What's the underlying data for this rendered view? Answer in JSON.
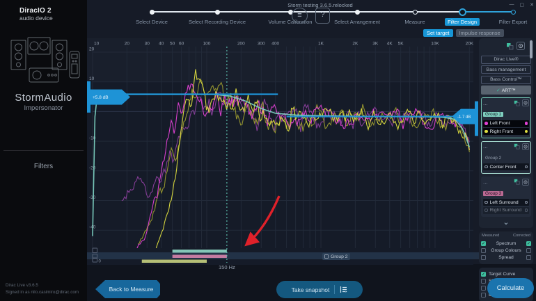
{
  "window": {
    "title": "Storm testing 3.6.5.relocked",
    "minimize": "—",
    "maximize": "▢",
    "close": "✕"
  },
  "toolbar": {
    "menu_icon": "≡",
    "help_icon": "?"
  },
  "sidebar": {
    "logo_line1": "DiracIO 2",
    "logo_line2": "audio device",
    "device_name": "StormAudio",
    "device_model": "Impersonator",
    "nav_filters": "Filters",
    "version": "Dirac Live v3.6.5",
    "signed_in": "Signed in as nilo.casimiro@dirac.com"
  },
  "stepper": {
    "steps": [
      {
        "label": "Select Device",
        "state": "done"
      },
      {
        "label": "Select Recording Device",
        "state": "done"
      },
      {
        "label": "Volume Calibration",
        "state": "done"
      },
      {
        "label": "Select Arrangement",
        "state": "done"
      },
      {
        "label": "Measure",
        "state": "open"
      },
      {
        "label": "Filter Design",
        "state": "active"
      },
      {
        "label": "Filter Export",
        "state": "next"
      }
    ],
    "sub_tabs": [
      {
        "label": "Set target",
        "active": true
      },
      {
        "label": "Impulse response",
        "active": false
      }
    ]
  },
  "chart_data": {
    "type": "line",
    "x_unit": "Hz",
    "y_unit": "dB",
    "x_scale": "log",
    "x_range": [
      10,
      20000
    ],
    "y_range": [
      -45,
      20
    ],
    "x_ticks": [
      {
        "f": 10,
        "label": "10"
      },
      {
        "f": 20,
        "label": "20"
      },
      {
        "f": 30,
        "label": "30"
      },
      {
        "f": 40,
        "label": "40"
      },
      {
        "f": 50,
        "label": "50"
      },
      {
        "f": 60,
        "label": "60"
      },
      {
        "f": 70,
        "label": ""
      },
      {
        "f": 80,
        "label": ""
      },
      {
        "f": 90,
        "label": ""
      },
      {
        "f": 100,
        "label": "100"
      },
      {
        "f": 200,
        "label": "200"
      },
      {
        "f": 300,
        "label": "300"
      },
      {
        "f": 400,
        "label": "400"
      },
      {
        "f": 500,
        "label": ""
      },
      {
        "f": 600,
        "label": ""
      },
      {
        "f": 700,
        "label": ""
      },
      {
        "f": 800,
        "label": ""
      },
      {
        "f": 900,
        "label": ""
      },
      {
        "f": 1000,
        "label": "1K"
      },
      {
        "f": 2000,
        "label": "2K"
      },
      {
        "f": 3000,
        "label": "3K"
      },
      {
        "f": 4000,
        "label": "4K"
      },
      {
        "f": 5000,
        "label": "5K"
      },
      {
        "f": 6000,
        "label": ""
      },
      {
        "f": 7000,
        "label": ""
      },
      {
        "f": 8000,
        "label": ""
      },
      {
        "f": 9000,
        "label": ""
      },
      {
        "f": 10000,
        "label": "10K"
      },
      {
        "f": 20000,
        "label": "20K"
      }
    ],
    "y_ticks": [
      {
        "db": 20,
        "label": "20"
      },
      {
        "db": 10,
        "label": "10"
      },
      {
        "db": 0,
        "label": ""
      },
      {
        "db": -10,
        "label": "-10"
      },
      {
        "db": -20,
        "label": "-20"
      },
      {
        "db": -30,
        "label": "-30"
      },
      {
        "db": -40,
        "label": "-40"
      }
    ],
    "crossover": {
      "f": 150,
      "label": "150 Hz"
    },
    "handles": [
      {
        "side": "left",
        "db": 5.8,
        "label": "+5.8 dB",
        "f_start": 10,
        "f_end": 420
      },
      {
        "side": "right",
        "db": -1.7,
        "label": "-1.7 dB",
        "f_start": 500,
        "f_end": 20000
      }
    ],
    "series": [
      {
        "name": "Left Front measured",
        "color": "#8a3f9c",
        "noisy": true,
        "seed": 11,
        "noise_db": 5,
        "points": [
          [
            18,
            -30
          ],
          [
            25,
            -24
          ],
          [
            32,
            -27
          ],
          [
            40,
            -22
          ],
          [
            50,
            -16
          ],
          [
            60,
            -8
          ],
          [
            70,
            0
          ],
          [
            85,
            6
          ],
          [
            100,
            2
          ],
          [
            130,
            4
          ],
          [
            170,
            1
          ],
          [
            220,
            2
          ],
          [
            300,
            -1
          ],
          [
            450,
            -1.5
          ],
          [
            700,
            -1.5
          ],
          [
            1200,
            -1.5
          ],
          [
            2500,
            -1.5
          ],
          [
            5000,
            -2
          ],
          [
            9000,
            -2
          ],
          [
            13000,
            -2.5
          ],
          [
            16000,
            -4
          ],
          [
            20000,
            -10
          ]
        ]
      },
      {
        "name": "Right Front measured",
        "color": "#99992f",
        "noisy": true,
        "seed": 22,
        "noise_db": 5,
        "points": [
          [
            25,
            -45
          ],
          [
            33,
            -35
          ],
          [
            42,
            -25
          ],
          [
            52,
            -12
          ],
          [
            62,
            -2
          ],
          [
            75,
            7
          ],
          [
            90,
            10
          ],
          [
            110,
            5
          ],
          [
            140,
            6
          ],
          [
            180,
            2
          ],
          [
            240,
            1
          ],
          [
            350,
            -1
          ],
          [
            550,
            -1
          ],
          [
            900,
            -1.5
          ],
          [
            1800,
            -1.5
          ],
          [
            3000,
            -2
          ],
          [
            6000,
            -2
          ],
          [
            10000,
            -2.5
          ],
          [
            14000,
            -3
          ],
          [
            17000,
            -5
          ],
          [
            20000,
            -12
          ]
        ]
      },
      {
        "name": "Left Front corrected",
        "color": "#e041d4",
        "noisy": true,
        "seed": 33,
        "noise_db": 4.5,
        "points": [
          [
            22,
            -50
          ],
          [
            30,
            -40
          ],
          [
            38,
            -25
          ],
          [
            48,
            -8
          ],
          [
            60,
            2
          ],
          [
            75,
            6
          ],
          [
            90,
            3
          ],
          [
            110,
            4
          ],
          [
            140,
            2
          ],
          [
            180,
            3
          ],
          [
            250,
            -1
          ],
          [
            350,
            -2
          ],
          [
            500,
            -2
          ],
          [
            800,
            -2
          ],
          [
            1200,
            -2
          ],
          [
            2000,
            -2
          ],
          [
            3500,
            -2.5
          ],
          [
            6000,
            -2.5
          ],
          [
            10000,
            -3
          ],
          [
            14000,
            -3.5
          ],
          [
            17000,
            -6
          ],
          [
            20000,
            -13
          ]
        ]
      },
      {
        "name": "Right Front corrected",
        "color": "#dede3f",
        "noisy": true,
        "seed": 44,
        "noise_db": 4.5,
        "points": [
          [
            30,
            -52
          ],
          [
            40,
            -42
          ],
          [
            50,
            -28
          ],
          [
            58,
            -10
          ],
          [
            66,
            4
          ],
          [
            80,
            9
          ],
          [
            95,
            4
          ],
          [
            120,
            5
          ],
          [
            150,
            2
          ],
          [
            200,
            3
          ],
          [
            280,
            -1
          ],
          [
            400,
            -2
          ],
          [
            600,
            -1.5
          ],
          [
            1000,
            -2
          ],
          [
            2000,
            -2
          ],
          [
            4000,
            -2.5
          ],
          [
            7000,
            -2.5
          ],
          [
            11000,
            -3
          ],
          [
            15000,
            -3.5
          ],
          [
            18000,
            -7
          ],
          [
            20000,
            -14
          ]
        ]
      },
      {
        "name": "Target curve",
        "color": "#7bd0c0",
        "noisy": false,
        "seed": 0,
        "noise_db": 0,
        "points": [
          [
            10,
            -42
          ],
          [
            10.3,
            -15
          ],
          [
            10.6,
            5.8
          ],
          [
            80,
            5.8
          ],
          [
            120,
            5.7
          ],
          [
            160,
            5.2
          ],
          [
            220,
            3.5
          ],
          [
            300,
            1
          ],
          [
            400,
            -0.6
          ],
          [
            600,
            -1.2
          ],
          [
            1000,
            -1.4
          ],
          [
            2000,
            -1.6
          ],
          [
            4000,
            -1.7
          ],
          [
            8000,
            -1.8
          ],
          [
            12000,
            -2
          ],
          [
            15000,
            -2.6
          ],
          [
            17500,
            -6
          ],
          [
            20000,
            -12
          ]
        ]
      }
    ],
    "group_bars": [
      {
        "name": "Group 1",
        "color": "#8fd8c6",
        "f1": 50,
        "f2": 150,
        "row": 0
      },
      {
        "name": "Group 2",
        "color": "#d583ab",
        "f1": 50,
        "f2": 150,
        "row": 1
      },
      {
        "name": "Group 3",
        "color": "#c6d27e",
        "f1": 27,
        "f2": 100,
        "row": 2
      }
    ],
    "bottom_row_value": "0",
    "selected_group": {
      "label": "Group 2",
      "checked": false
    },
    "annotation": {
      "type": "arrow",
      "color": "#e0212a"
    }
  },
  "right_panel": {
    "modes": [
      {
        "label": "Dirac Live®",
        "selected": false
      },
      {
        "label": "Bass management",
        "selected": false
      },
      {
        "label": "Bass Control™",
        "selected": false
      },
      {
        "label": "ART™",
        "selected": true,
        "check": "✓"
      }
    ],
    "groups": [
      {
        "title": "Group 1",
        "tag_bg": "#7fcfbf",
        "tag_fg": "#0f1420",
        "border": "sel",
        "items": [
          {
            "label": "Left Front",
            "color": "#e041d4",
            "marker": "filled",
            "dim": false
          },
          {
            "label": "Right Front",
            "color": "#e0e040",
            "marker": "filled",
            "dim": false
          }
        ]
      },
      {
        "title": "Group 2",
        "tag_bg": "",
        "tag_fg": "#9aa5b5",
        "border": "sel2",
        "items": [
          {
            "label": "Center Front",
            "color": "",
            "marker": "open",
            "dim": false
          }
        ]
      },
      {
        "title": "Group 3",
        "tag_bg": "#bb6a93",
        "tag_fg": "#1a1020",
        "border": "",
        "items": [
          {
            "label": "Left Surround",
            "color": "",
            "marker": "open",
            "dim": false
          },
          {
            "label": "Right Surround",
            "color": "",
            "marker": "open",
            "dim": true
          }
        ]
      }
    ],
    "expand_chevron": "⌄",
    "spectrum_checks": {
      "col_headers": [
        "Measured",
        "Corrected"
      ],
      "rows": [
        {
          "label": "Spectrum",
          "measured": true,
          "corrected": true
        },
        {
          "label": "Group Colours",
          "measured": false,
          "corrected": false
        },
        {
          "label": "Spread",
          "measured": false,
          "corrected": false
        }
      ]
    },
    "view_checks": [
      {
        "label": "Target Curve",
        "checked": true
      },
      {
        "label": "Show filters",
        "checked": false
      },
      {
        "label": "Curtains",
        "checked": false
      },
      {
        "label": "Detected Range",
        "checked": false
      }
    ]
  },
  "footer": {
    "back": "Back to Measure",
    "snapshot": "Take snapshot",
    "calculate": "Calculate"
  }
}
